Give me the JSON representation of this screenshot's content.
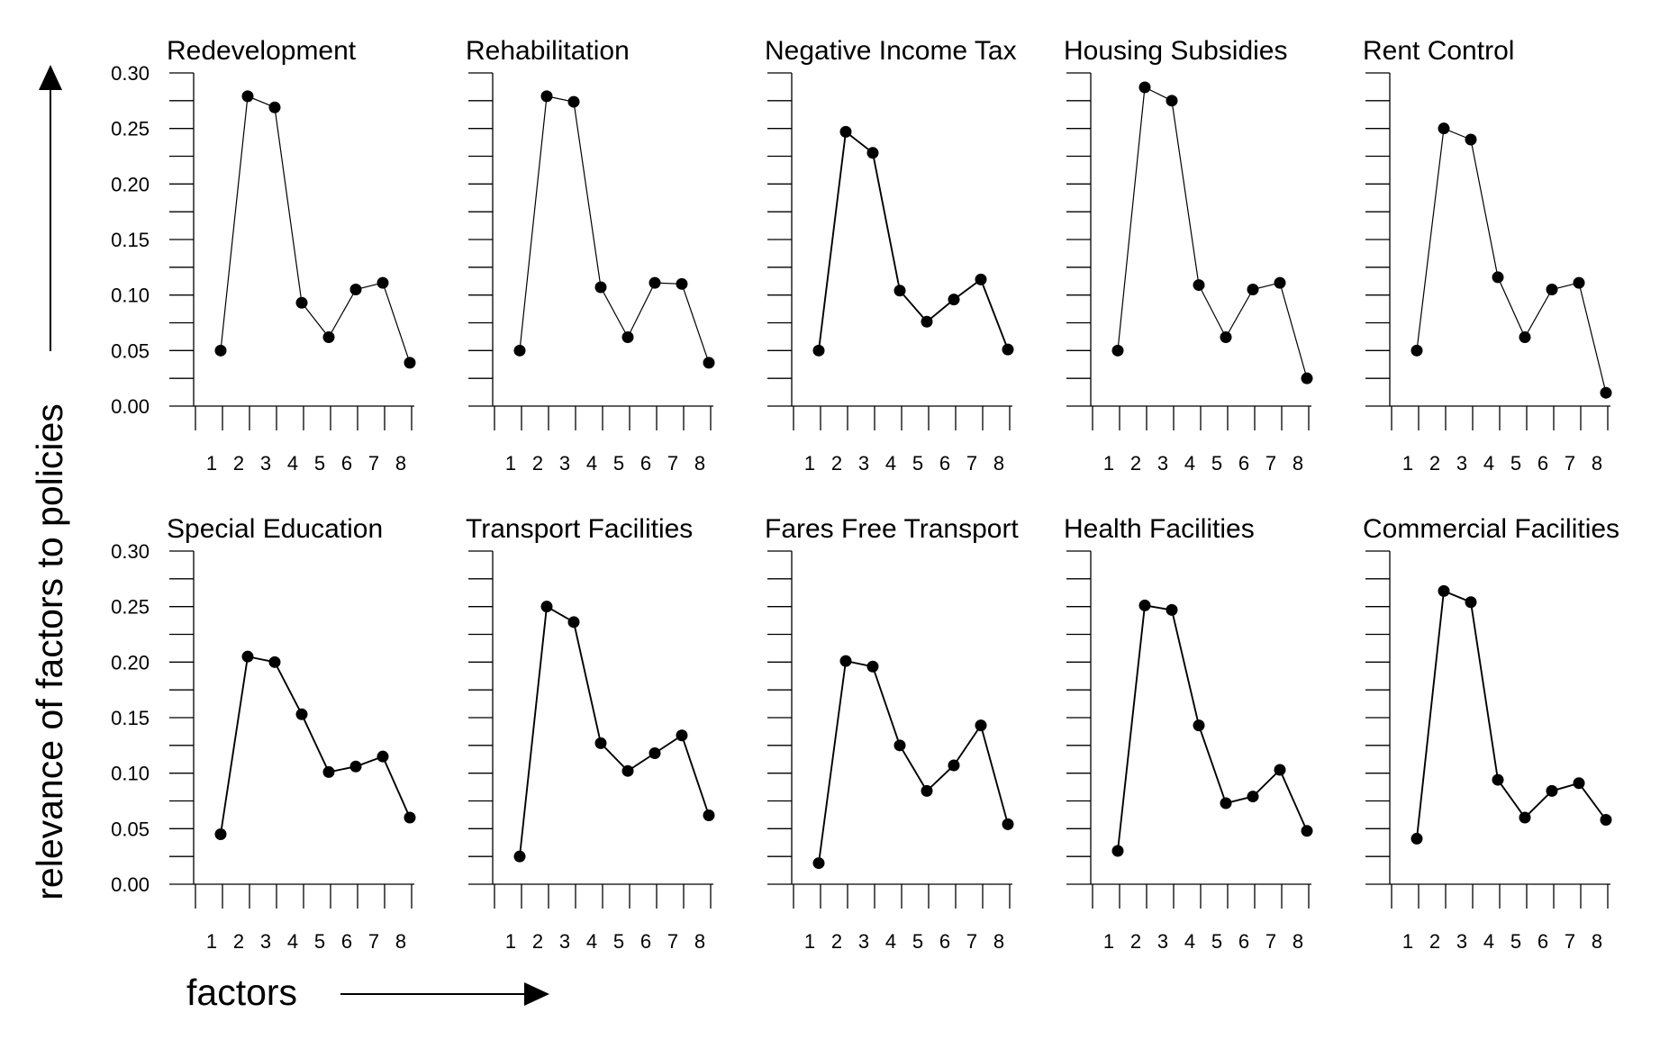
{
  "figure": {
    "ylabel": "relevance of factors to policies",
    "xlabel": "factors"
  },
  "chart_data": {
    "type": "line",
    "layout": "small multiples, 2 rows x 5 columns",
    "x": [
      1,
      2,
      3,
      4,
      5,
      6,
      7,
      8
    ],
    "ylim": [
      0,
      0.3
    ],
    "yticks": [
      "0.00",
      "0.05",
      "0.10",
      "0.15",
      "0.20",
      "0.25",
      "0.30"
    ],
    "xticks": [
      "1",
      "2",
      "3",
      "4",
      "5",
      "6",
      "7",
      "8"
    ],
    "grid": false,
    "legend": "none",
    "panels": [
      {
        "title": "Redevelopment",
        "values": [
          0.05,
          0.279,
          0.269,
          0.093,
          0.062,
          0.105,
          0.111,
          0.039
        ]
      },
      {
        "title": "Rehabilitation",
        "values": [
          0.05,
          0.279,
          0.274,
          0.107,
          0.062,
          0.111,
          0.11,
          0.039
        ]
      },
      {
        "title": "Negative Income Tax",
        "values": [
          0.05,
          0.247,
          0.228,
          0.104,
          0.076,
          0.096,
          0.114,
          0.051
        ]
      },
      {
        "title": "Housing Subsidies",
        "values": [
          0.05,
          0.287,
          0.275,
          0.109,
          0.062,
          0.105,
          0.111,
          0.025
        ]
      },
      {
        "title": "Rent Control",
        "values": [
          0.05,
          0.25,
          0.24,
          0.116,
          0.062,
          0.105,
          0.111,
          0.012
        ]
      },
      {
        "title": "Special Education",
        "values": [
          0.045,
          0.205,
          0.2,
          0.153,
          0.101,
          0.106,
          0.115,
          0.06
        ]
      },
      {
        "title": "Transport Facilities",
        "values": [
          0.025,
          0.25,
          0.236,
          0.127,
          0.102,
          0.118,
          0.134,
          0.062
        ]
      },
      {
        "title": "Fares Free Transport",
        "values": [
          0.019,
          0.201,
          0.196,
          0.125,
          0.084,
          0.107,
          0.143,
          0.054
        ]
      },
      {
        "title": "Health Facilities",
        "values": [
          0.03,
          0.251,
          0.247,
          0.143,
          0.073,
          0.079,
          0.103,
          0.048
        ]
      },
      {
        "title": "Commercial Facilities",
        "values": [
          0.041,
          0.264,
          0.254,
          0.094,
          0.06,
          0.084,
          0.091,
          0.058
        ]
      }
    ]
  }
}
